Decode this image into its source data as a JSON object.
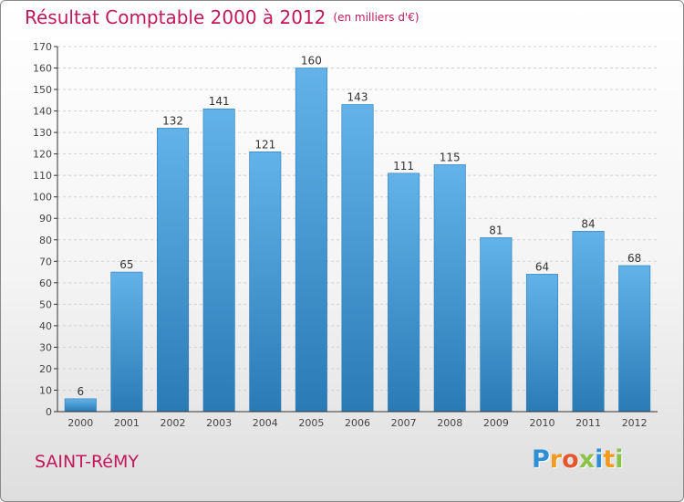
{
  "colors": {
    "title": "#c2185b",
    "bar_light": "#63b3ea",
    "bar_dark": "#2a7ab6",
    "axis": "#333333",
    "grid": "#d2d2d2"
  },
  "header": {
    "title": "Résultat Comptable 2000 à 2012",
    "subtitle": "(en milliers d'€)"
  },
  "footer": {
    "place": "SAINT-RéMY",
    "logo_letters": [
      {
        "ch": "P",
        "color": "#2f8fd6"
      },
      {
        "ch": "r",
        "color": "#f39a1e"
      },
      {
        "ch": "o",
        "color": "#e4572e"
      },
      {
        "ch": "x",
        "color": "#8bc34a"
      },
      {
        "ch": "i",
        "color": "#2f8fd6"
      },
      {
        "ch": "t",
        "color": "#f39a1e"
      },
      {
        "ch": "i",
        "color": "#8bc34a"
      }
    ]
  },
  "chart_data": {
    "type": "bar",
    "title": "Résultat Comptable 2000 à 2012",
    "subtitle": "(en milliers d'€)",
    "categories": [
      "2000",
      "2001",
      "2002",
      "2003",
      "2004",
      "2005",
      "2006",
      "2007",
      "2008",
      "2009",
      "2010",
      "2011",
      "2012"
    ],
    "values": [
      6,
      65,
      132,
      141,
      121,
      160,
      143,
      111,
      115,
      81,
      64,
      84,
      68
    ],
    "ylim": [
      0,
      170
    ],
    "ytick_step": 10,
    "grid": true,
    "xlabel": "",
    "ylabel": ""
  }
}
